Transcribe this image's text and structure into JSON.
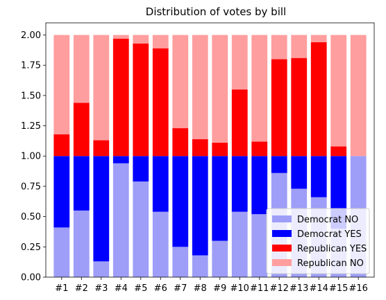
{
  "chart_data": {
    "type": "bar",
    "stacked": true,
    "title": "Distribution of votes by bill",
    "xlabel": "",
    "ylabel": "",
    "ylim": [
      0,
      2.0
    ],
    "yticks": [
      "0.00",
      "0.25",
      "0.50",
      "0.75",
      "1.00",
      "1.25",
      "1.50",
      "1.75",
      "2.00"
    ],
    "ytick_values": [
      0,
      0.25,
      0.5,
      0.75,
      1.0,
      1.25,
      1.5,
      1.75,
      2.0
    ],
    "grid": false,
    "legend_position": "lower-right",
    "categories": [
      "#1",
      "#2",
      "#3",
      "#4",
      "#5",
      "#6",
      "#7",
      "#8",
      "#9",
      "#10",
      "#11",
      "#12",
      "#13",
      "#14",
      "#15",
      "#16"
    ],
    "series": [
      {
        "name": "Democrat NO",
        "color": "#9e9ef8",
        "values": [
          0.41,
          0.55,
          0.13,
          0.94,
          0.79,
          0.54,
          0.25,
          0.18,
          0.3,
          0.54,
          0.52,
          0.86,
          0.73,
          0.66,
          0.4,
          1.0
        ]
      },
      {
        "name": "Democrat YES",
        "color": "#0000ff",
        "values": [
          0.59,
          0.45,
          0.87,
          0.06,
          0.21,
          0.46,
          0.75,
          0.82,
          0.7,
          0.46,
          0.48,
          0.14,
          0.27,
          0.34,
          0.6,
          0.0
        ]
      },
      {
        "name": "Republican YES",
        "color": "#ff0000",
        "values": [
          0.18,
          0.44,
          0.13,
          0.97,
          0.93,
          0.89,
          0.23,
          0.14,
          0.11,
          0.55,
          0.12,
          0.8,
          0.81,
          0.94,
          0.08,
          0.0
        ]
      },
      {
        "name": "Republican NO",
        "color": "#ff9e9e",
        "values": [
          0.82,
          0.56,
          0.87,
          0.03,
          0.07,
          0.11,
          0.77,
          0.86,
          0.89,
          0.45,
          0.88,
          0.2,
          0.19,
          0.06,
          0.92,
          1.0
        ]
      }
    ]
  }
}
